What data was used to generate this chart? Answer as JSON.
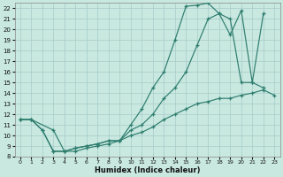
{
  "xlabel": "Humidex (Indice chaleur)",
  "xlim": [
    -0.5,
    23.5
  ],
  "ylim": [
    8,
    22.5
  ],
  "xticks": [
    0,
    1,
    2,
    3,
    4,
    5,
    6,
    7,
    8,
    9,
    10,
    11,
    12,
    13,
    14,
    15,
    16,
    17,
    18,
    19,
    20,
    21,
    22,
    23
  ],
  "yticks": [
    8,
    9,
    10,
    11,
    12,
    13,
    14,
    15,
    16,
    17,
    18,
    19,
    20,
    21,
    22
  ],
  "line_color": "#2e7d6e",
  "bg_color": "#c8e8e0",
  "grid_color": "#a8ccca",
  "line_top": {
    "x": [
      0,
      1,
      3,
      4,
      5,
      6,
      7,
      8,
      9,
      10,
      11,
      12,
      13,
      14,
      15,
      16,
      17,
      18,
      19,
      20,
      21,
      22
    ],
    "y": [
      11.5,
      11.5,
      10.5,
      8.5,
      8.5,
      8.8,
      9.0,
      9.2,
      9.5,
      11.0,
      12.5,
      14.5,
      16.0,
      19.0,
      22.2,
      22.3,
      22.5,
      21.5,
      21.0,
      15.0,
      15.0,
      14.5
    ]
  },
  "line_mid": {
    "x": [
      0,
      1,
      2,
      3,
      4,
      5,
      6,
      7,
      8,
      9,
      10,
      11,
      12,
      13,
      14,
      15,
      16,
      17,
      18,
      19,
      20,
      21,
      22
    ],
    "y": [
      11.5,
      11.5,
      10.5,
      8.5,
      8.5,
      8.8,
      9.0,
      9.2,
      9.5,
      9.5,
      10.5,
      11.0,
      12.0,
      13.5,
      14.5,
      16.0,
      18.5,
      21.0,
      21.5,
      19.5,
      21.8,
      15.0,
      21.5
    ]
  },
  "line_bot": {
    "x": [
      0,
      1,
      2,
      3,
      4,
      5,
      6,
      7,
      8,
      9,
      10,
      11,
      12,
      13,
      14,
      15,
      16,
      17,
      18,
      19,
      20,
      21,
      22,
      23
    ],
    "y": [
      11.5,
      11.5,
      10.5,
      8.5,
      8.5,
      8.8,
      9.0,
      9.2,
      9.5,
      9.5,
      10.0,
      10.3,
      10.8,
      11.5,
      12.0,
      12.5,
      13.0,
      13.2,
      13.5,
      13.5,
      13.8,
      14.0,
      14.3,
      13.8
    ]
  }
}
